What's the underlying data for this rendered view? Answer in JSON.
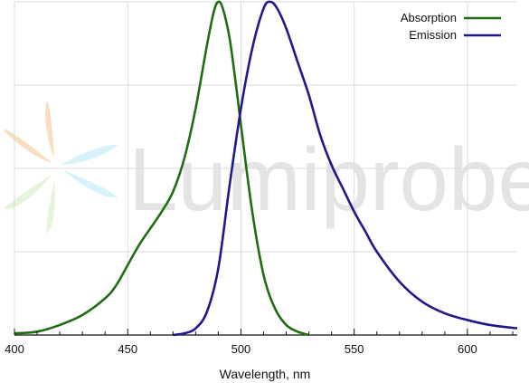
{
  "chart_data": {
    "type": "line",
    "title": "",
    "xlabel": "Wavelength, nm",
    "ylabel": "",
    "xlim": [
      400,
      622
    ],
    "ylim": [
      0,
      1
    ],
    "x_ticks": [
      400,
      450,
      500,
      550,
      600
    ],
    "x_tick_labels": [
      "400",
      "450",
      "500",
      "550",
      "600"
    ],
    "y_grid_levels": [
      0,
      0.25,
      0.5,
      0.75,
      1.0
    ],
    "grid": true,
    "legend_position": "top-right",
    "series": [
      {
        "name": "Absorption",
        "color": "#1f6e12",
        "points": [
          [
            400,
            0.005
          ],
          [
            410,
            0.01
          ],
          [
            420,
            0.03
          ],
          [
            430,
            0.06
          ],
          [
            440,
            0.11
          ],
          [
            445,
            0.15
          ],
          [
            450,
            0.21
          ],
          [
            455,
            0.27
          ],
          [
            460,
            0.32
          ],
          [
            465,
            0.37
          ],
          [
            470,
            0.43
          ],
          [
            475,
            0.53
          ],
          [
            480,
            0.68
          ],
          [
            485,
            0.87
          ],
          [
            488,
            0.97
          ],
          [
            490,
            1.0
          ],
          [
            492,
            0.98
          ],
          [
            495,
            0.89
          ],
          [
            498,
            0.74
          ],
          [
            500,
            0.63
          ],
          [
            505,
            0.37
          ],
          [
            510,
            0.18
          ],
          [
            515,
            0.08
          ],
          [
            520,
            0.03
          ],
          [
            525,
            0.01
          ],
          [
            530,
            0.0
          ]
        ]
      },
      {
        "name": "Emission",
        "color": "#21188c",
        "points": [
          [
            470,
            0.0
          ],
          [
            475,
            0.005
          ],
          [
            480,
            0.02
          ],
          [
            485,
            0.07
          ],
          [
            490,
            0.2
          ],
          [
            495,
            0.45
          ],
          [
            500,
            0.68
          ],
          [
            505,
            0.86
          ],
          [
            510,
            0.98
          ],
          [
            513,
            1.0
          ],
          [
            516,
            0.98
          ],
          [
            520,
            0.92
          ],
          [
            525,
            0.82
          ],
          [
            530,
            0.72
          ],
          [
            535,
            0.6
          ],
          [
            540,
            0.51
          ],
          [
            545,
            0.44
          ],
          [
            550,
            0.37
          ],
          [
            555,
            0.31
          ],
          [
            560,
            0.25
          ],
          [
            570,
            0.16
          ],
          [
            580,
            0.1
          ],
          [
            590,
            0.065
          ],
          [
            600,
            0.045
          ],
          [
            610,
            0.03
          ],
          [
            622,
            0.02
          ]
        ]
      }
    ]
  },
  "watermark": {
    "text": "Lumiprobe",
    "logo_colors": [
      "#f7d7b3",
      "#d4f1fb",
      "#e3f3d8"
    ]
  }
}
